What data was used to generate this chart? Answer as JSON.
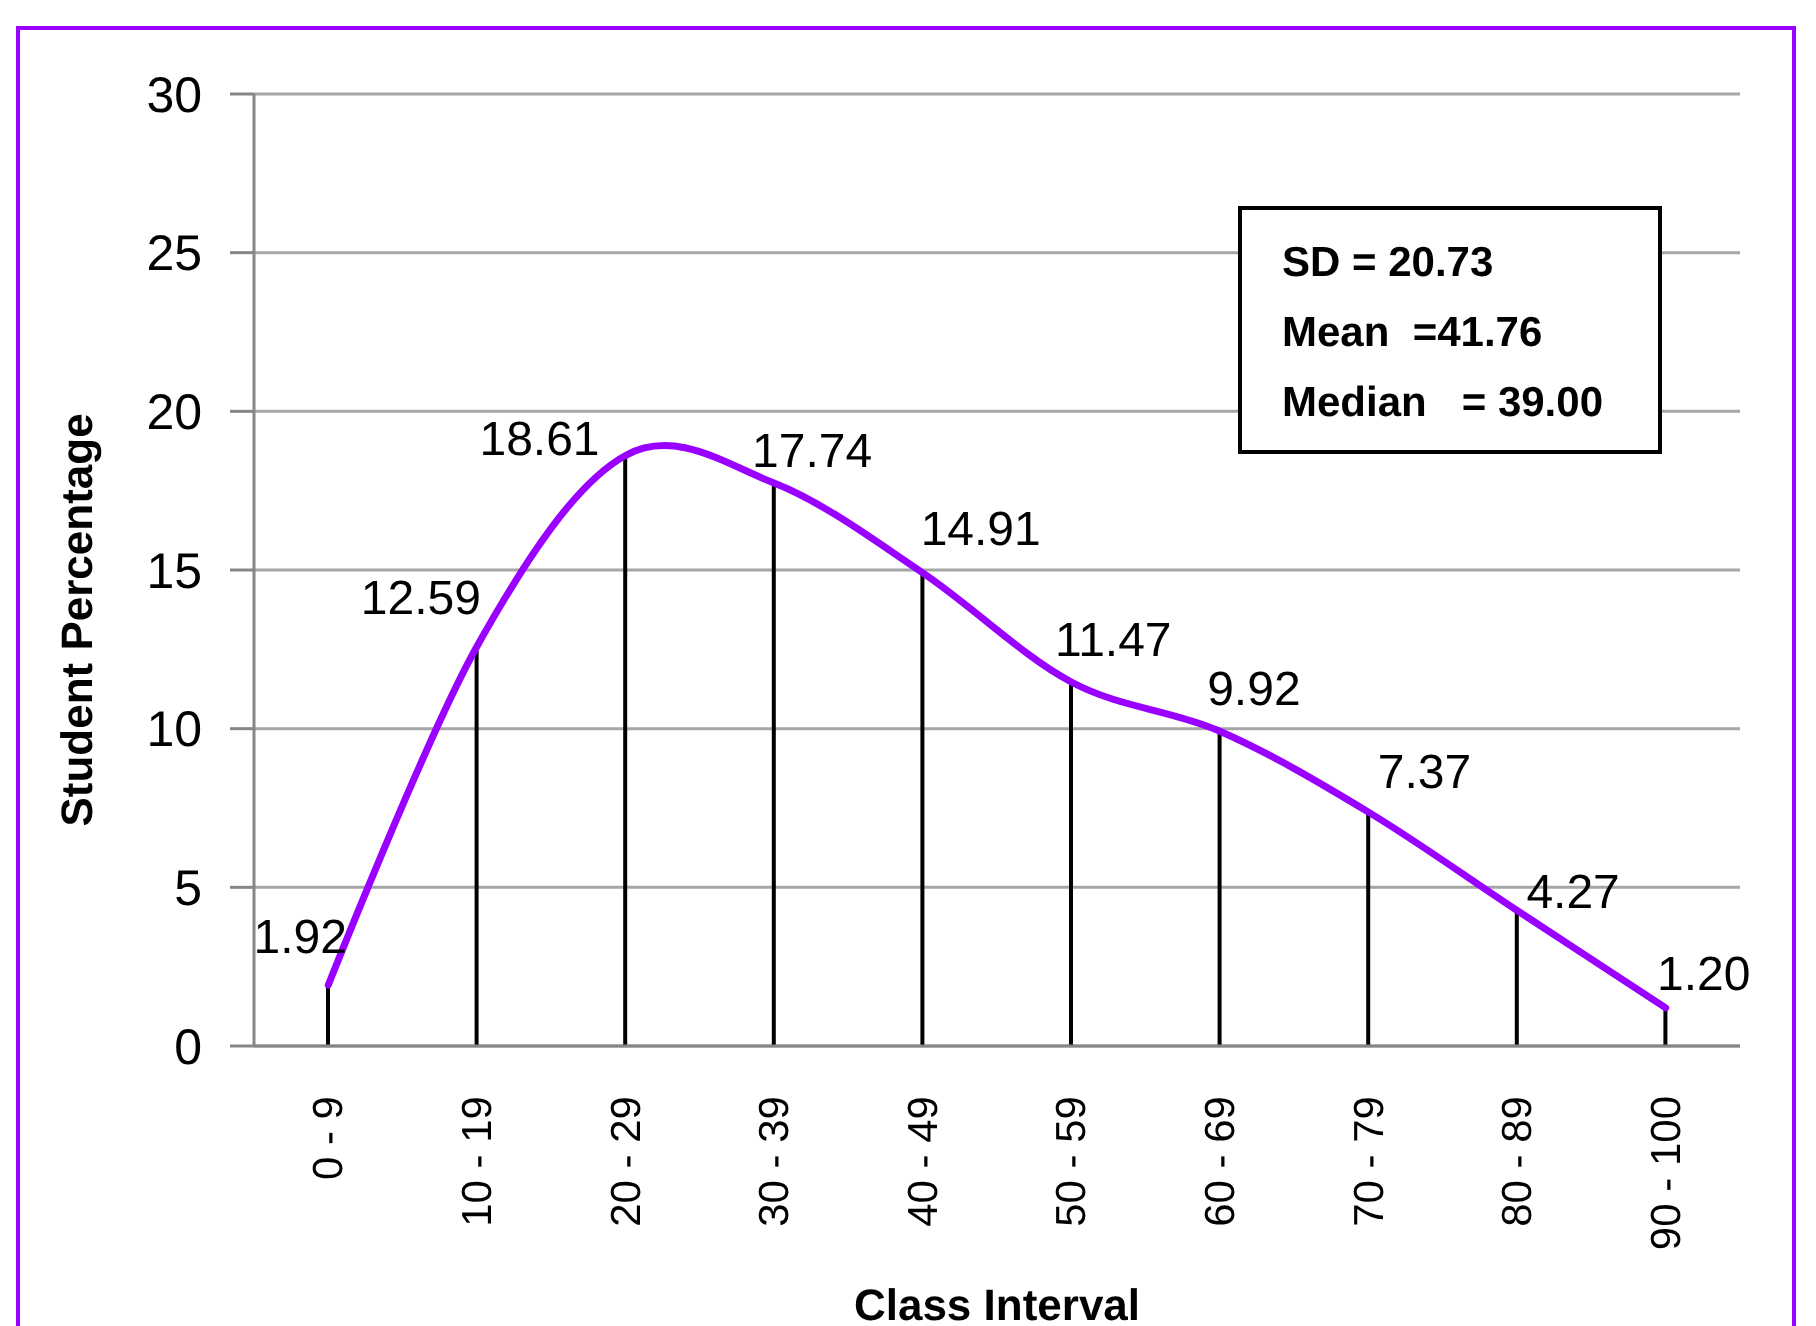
{
  "chart_data": {
    "type": "line",
    "xlabel": "Class Interval",
    "ylabel": "Student Percentage",
    "categories": [
      "0 - 9",
      "10 - 19",
      "20 - 29",
      "30 - 39",
      "40 - 49",
      "50 - 59",
      "60 - 69",
      "70 - 79",
      "80 - 89",
      "90 - 100"
    ],
    "series": [
      {
        "type": "bar",
        "color": "#000000",
        "values": [
          1.92,
          12.59,
          18.61,
          17.74,
          14.91,
          11.47,
          9.92,
          7.37,
          4.27,
          1.2
        ]
      },
      {
        "color": "#9900ff",
        "values": [
          1.92,
          12.59,
          18.61,
          17.74,
          14.91,
          11.47,
          9.92,
          7.37,
          4.27,
          1.2
        ],
        "value_labels": [
          "1.92",
          "12.59",
          "18.61",
          "17.74",
          "14.91",
          "11.47",
          "9.92",
          "7.37",
          "4.27",
          "1.20"
        ]
      }
    ],
    "ylim": [
      0,
      30
    ],
    "yticks": [
      0,
      5,
      10,
      15,
      20,
      25,
      30
    ],
    "grid": "y",
    "annotations": [
      "SD = 20.73",
      "Mean  =41.76",
      "Median   = 39.00"
    ]
  }
}
